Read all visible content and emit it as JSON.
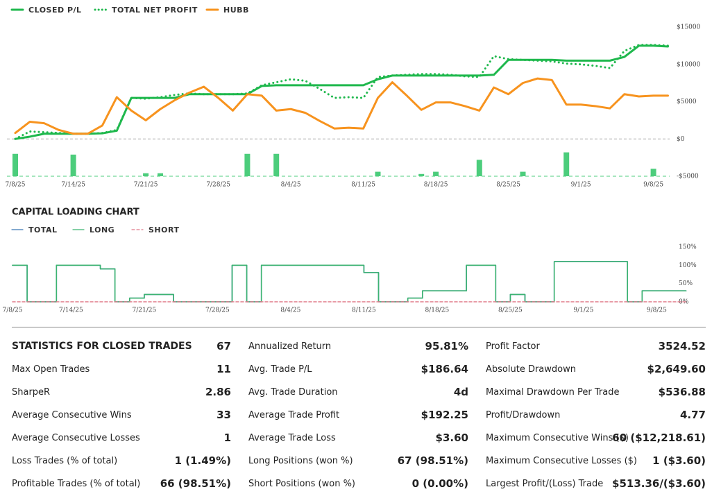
{
  "chart_data": [
    {
      "type": "line",
      "categories": [
        "7/8/25",
        null,
        null,
        null,
        "7/14/25",
        null,
        null,
        null,
        null,
        "7/21/25",
        null,
        null,
        null,
        null,
        "7/28/25",
        null,
        null,
        null,
        null,
        "8/4/25",
        null,
        null,
        null,
        null,
        "8/11/25",
        null,
        null,
        null,
        null,
        "8/18/25",
        null,
        null,
        null,
        null,
        "8/25/25",
        null,
        null,
        null,
        null,
        "9/1/25",
        null,
        null,
        null,
        null,
        "9/8/25",
        null
      ],
      "series": [
        {
          "name": "CLOSED P/L",
          "color": "#1fb84d",
          "dash": "solid",
          "values": [
            0,
            300,
            700,
            700,
            700,
            700,
            750,
            1100,
            5500,
            5500,
            5500,
            5500,
            6000,
            6000,
            6000,
            6000,
            6000,
            7100,
            7200,
            7200,
            7200,
            7200,
            7200,
            7200,
            7200,
            8000,
            8500,
            8500,
            8500,
            8500,
            8500,
            8500,
            8500,
            8600,
            10600,
            10600,
            10600,
            10600,
            10500,
            10500,
            10500,
            10500,
            11000,
            12500,
            12500,
            12400
          ]
        },
        {
          "name": "TOTAL NET PROFIT",
          "color": "#1fb84d",
          "dash": "dotted",
          "values": [
            0,
            1000,
            900,
            800,
            700,
            700,
            800,
            1200,
            5500,
            5400,
            5600,
            5900,
            6100,
            6000,
            6000,
            6000,
            6100,
            7200,
            7600,
            8000,
            7800,
            6700,
            5500,
            5600,
            5500,
            8300,
            8500,
            8600,
            8700,
            8700,
            8600,
            8400,
            8300,
            11100,
            10700,
            10600,
            10500,
            10400,
            10100,
            10000,
            9800,
            9500,
            11800,
            12600,
            12600,
            12500
          ]
        },
        {
          "name": "HUBB",
          "color": "#f7931e",
          "dash": "solid",
          "values": [
            800,
            2300,
            2100,
            1200,
            700,
            700,
            1800,
            5600,
            3800,
            2500,
            4000,
            5200,
            6200,
            7000,
            5500,
            3800,
            6000,
            5800,
            3800,
            4000,
            3500,
            2400,
            1400,
            1500,
            1400,
            5500,
            7600,
            5800,
            3900,
            4900,
            4900,
            4400,
            3800,
            6900,
            6000,
            7500,
            8100,
            7900,
            4600,
            4600,
            4400,
            4100,
            6000,
            5700,
            5800,
            5800
          ]
        }
      ],
      "bars": {
        "color": "#4ccd7c",
        "values": [
          -2000,
          null,
          null,
          null,
          -2100,
          null,
          null,
          null,
          null,
          -4600,
          -4600,
          null,
          null,
          null,
          null,
          null,
          -2000,
          null,
          -2000,
          null,
          null,
          null,
          null,
          null,
          null,
          -4400,
          null,
          null,
          -4700,
          -4400,
          null,
          null,
          -2800,
          null,
          null,
          -4400,
          null,
          null,
          -1800,
          null,
          null,
          null,
          null,
          null,
          -4000,
          null
        ]
      },
      "ylim": [
        -5000,
        15000
      ],
      "yticks": [
        {
          "value": -5000,
          "label": "-$5000"
        },
        {
          "value": 0,
          "label": "$0"
        },
        {
          "value": 5000,
          "label": "$5000"
        },
        {
          "value": 10000,
          "label": "$10000"
        },
        {
          "value": 15000,
          "label": "$15000"
        }
      ]
    },
    {
      "type": "step",
      "title": "CAPITAL LOADING CHART",
      "categories": [
        "7/8/25",
        null,
        null,
        null,
        "7/14/25",
        null,
        null,
        null,
        null,
        "7/21/25",
        null,
        null,
        null,
        null,
        "7/28/25",
        null,
        null,
        null,
        null,
        "8/4/25",
        null,
        null,
        null,
        null,
        "8/11/25",
        null,
        null,
        null,
        null,
        "8/18/25",
        null,
        null,
        null,
        null,
        "8/25/25",
        null,
        null,
        null,
        null,
        "9/1/25",
        null,
        null,
        null,
        null,
        "9/8/25",
        null
      ],
      "series": [
        {
          "name": "TOTAL",
          "color": "#3a78b5",
          "dash": "solid",
          "values": [
            100,
            0,
            0,
            100,
            100,
            100,
            90,
            0,
            10,
            20,
            20,
            0,
            0,
            0,
            0,
            100,
            0,
            100,
            100,
            100,
            100,
            100,
            100,
            100,
            80,
            0,
            0,
            10,
            30,
            30,
            30,
            100,
            100,
            0,
            20,
            0,
            0,
            110,
            110,
            110,
            110,
            110,
            0,
            30,
            30,
            30
          ]
        },
        {
          "name": "LONG",
          "color": "#3cb371",
          "dash": "solid",
          "values": [
            100,
            0,
            0,
            100,
            100,
            100,
            90,
            0,
            10,
            20,
            20,
            0,
            0,
            0,
            0,
            100,
            0,
            100,
            100,
            100,
            100,
            100,
            100,
            100,
            80,
            0,
            0,
            10,
            30,
            30,
            30,
            100,
            100,
            0,
            20,
            0,
            0,
            110,
            110,
            110,
            110,
            110,
            0,
            30,
            30,
            30
          ]
        },
        {
          "name": "SHORT",
          "color": "#e07b8a",
          "dash": "dashed",
          "values": [
            0,
            0,
            0,
            0,
            0,
            0,
            0,
            0,
            0,
            0,
            0,
            0,
            0,
            0,
            0,
            0,
            0,
            0,
            0,
            0,
            0,
            0,
            0,
            0,
            0,
            0,
            0,
            0,
            0,
            0,
            0,
            0,
            0,
            0,
            0,
            0,
            0,
            0,
            0,
            0,
            0,
            0,
            0,
            0,
            0,
            0
          ]
        }
      ],
      "ylim": [
        0,
        150
      ],
      "yticks": [
        {
          "value": 0,
          "label": "0%"
        },
        {
          "value": 50,
          "label": "50%"
        },
        {
          "value": 100,
          "label": "100%"
        },
        {
          "value": 150,
          "label": "150%"
        }
      ]
    }
  ],
  "table": {
    "rows": [
      [
        "STATISTICS FOR CLOSED TRADES",
        "67",
        "Annualized Return",
        "95.81%",
        "Profit Factor",
        "3524.52"
      ],
      [
        "Max Open Trades",
        "11",
        "Avg. Trade P/L",
        "$186.64",
        "Absolute Drawdown",
        "$2,649.60"
      ],
      [
        "SharpeR",
        "2.86",
        "Avg. Trade Duration",
        "4d",
        "Maximal Drawdown Per Trade",
        "$536.88"
      ],
      [
        "Average Consecutive Wins",
        "33",
        "Average Trade Profit",
        "$192.25",
        "Profit/Drawdown",
        "4.77"
      ],
      [
        "Average Consecutive Losses",
        "1",
        "Average Trade Loss",
        "$3.60",
        "Maximum Consecutive Wins ($)",
        "60 ($12,218.61)"
      ],
      [
        "Loss Trades (% of total)",
        "1 (1.49%)",
        "Long Positions (won %)",
        "67 (98.51%)",
        "Maximum Consecutive Losses ($)",
        "1 ($3.60)"
      ],
      [
        "Profitable Trades (% of total)",
        "66 (98.51%)",
        "Short Positions (won %)",
        "0 (0.00%)",
        "Largest Profit/(Loss) Trade",
        "$513.36/($3.60)"
      ]
    ]
  }
}
